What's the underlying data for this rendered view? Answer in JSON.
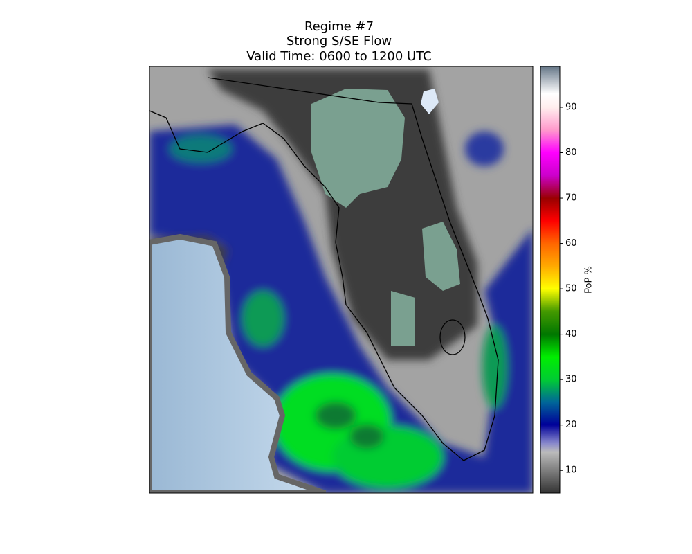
{
  "title": {
    "line1": "Regime #7",
    "line2": "Strong S/SE Flow",
    "line3": "Valid Time: 0600 to 1200 UTC"
  },
  "colorbar": {
    "label": "PoP %",
    "range": [
      5,
      99
    ],
    "ticks": [
      10,
      20,
      30,
      40,
      50,
      60,
      70,
      80,
      90
    ]
  }
}
